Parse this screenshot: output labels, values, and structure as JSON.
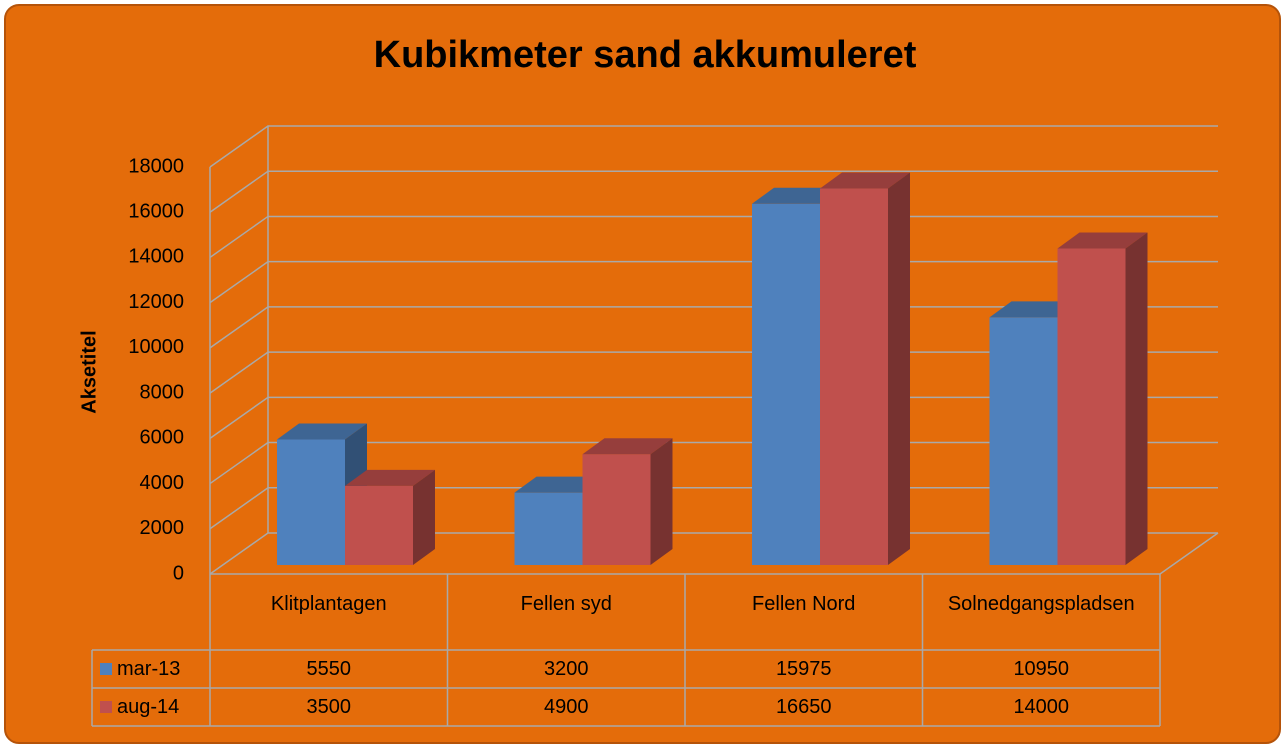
{
  "chart_data": {
    "type": "bar3d",
    "title": "Kubikmeter sand akkumuleret",
    "y_label": "Aksetitel",
    "categories": [
      "Klitplantagen",
      "Fellen syd",
      "Fellen Nord",
      "Solnedgangspladsen"
    ],
    "series": [
      {
        "name": "mar-13",
        "color": "#4f81bd",
        "values": [
          5550,
          3200,
          15975,
          10950
        ]
      },
      {
        "name": "aug-14",
        "color": "#c0504d",
        "values": [
          3500,
          4900,
          16650,
          14000
        ]
      }
    ],
    "ylim": [
      0,
      18000
    ],
    "yticks": [
      0,
      2000,
      4000,
      6000,
      8000,
      10000,
      12000,
      14000,
      16000,
      18000
    ],
    "grid": true,
    "data_table": true
  }
}
